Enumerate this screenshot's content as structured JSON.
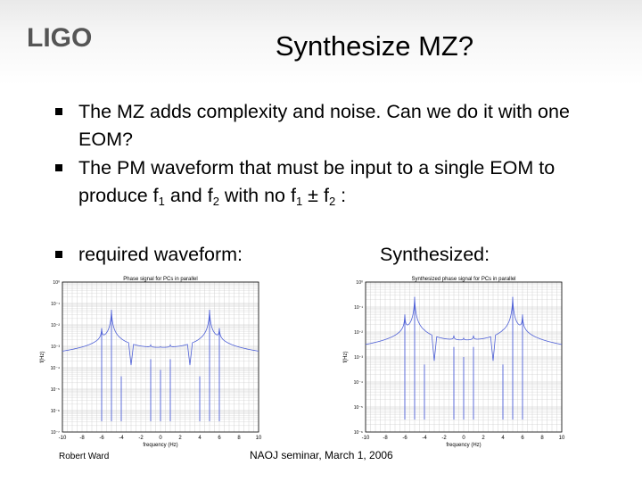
{
  "logo": {
    "text": "LIGO"
  },
  "title": "Synthesize MZ?",
  "bullets": {
    "b1": "The MZ adds complexity and noise. Can we do it with one EOM?",
    "b2_prefix": "The PM waveform that must be input to a single EOM to produce f",
    "b2_s1": "1",
    "b2_and": " and f",
    "b2_s2": "2",
    "b2_with": " with no f",
    "b2_s3": "1",
    "b2_pm": " ± f",
    "b2_s4": "2",
    "b2_end": " :",
    "b3": "required waveform:"
  },
  "synth_label": "Synthesized:",
  "footer": {
    "left": "Robert Ward",
    "center": "NAOJ seminar, March 1, 2006"
  },
  "colors": {
    "trace": "#4d5fd6",
    "grid": "#c8c8c8"
  },
  "chart_data": [
    {
      "type": "line",
      "title": "Phase signal for PCs in parallel",
      "xlabel": "frequency (Hz)",
      "ylabel": "f(Hz)",
      "x_ticks": [
        "-10",
        "-8",
        "-6",
        "-4",
        "-2",
        "0",
        "2",
        "4",
        "6",
        "8",
        "10"
      ],
      "y_ticks": [
        "10⁰",
        "10⁻¹",
        "10⁻²",
        "10⁻³",
        "10⁻⁴",
        "10⁻⁵",
        "10⁻⁶",
        "10⁻⁷"
      ],
      "xlim": [
        -10,
        10
      ],
      "log_y": true,
      "ylim_exp": [
        -7,
        0
      ],
      "floor_exp": -6.5,
      "peaks": [
        {
          "x": -6,
          "top": -2.3
        },
        {
          "x": -5,
          "top": -1.3
        },
        {
          "x": -4,
          "top": -4.4
        },
        {
          "x": -1,
          "top": -3.6
        },
        {
          "x": 0,
          "top": -4.1
        },
        {
          "x": 1,
          "top": -3.6
        },
        {
          "x": 4,
          "top": -4.4
        },
        {
          "x": 5,
          "top": -1.3
        },
        {
          "x": 6,
          "top": -2.3
        }
      ],
      "dips": [
        -3,
        3
      ]
    },
    {
      "type": "line",
      "title": "Synthesized phase signal for PCs in parallel",
      "xlabel": "frequency (Hz)",
      "ylabel": "f(Hz)",
      "x_ticks": [
        "-10",
        "-8",
        "-6",
        "-4",
        "-2",
        "0",
        "2",
        "4",
        "6",
        "8",
        "10"
      ],
      "y_ticks": [
        "10⁰",
        "10⁻¹",
        "10⁻²",
        "10⁻³",
        "10⁻⁴",
        "10⁻⁵",
        "10⁻⁶"
      ],
      "xlim": [
        -10,
        10
      ],
      "log_y": true,
      "ylim_exp": [
        -6,
        0
      ],
      "floor_exp": -5.5,
      "peaks": [
        {
          "x": -6,
          "top": -1.4
        },
        {
          "x": -5,
          "top": -0.6
        },
        {
          "x": -4,
          "top": -3.3
        },
        {
          "x": -1,
          "top": -2.6
        },
        {
          "x": 0,
          "top": -3.0
        },
        {
          "x": 1,
          "top": -2.6
        },
        {
          "x": 4,
          "top": -3.3
        },
        {
          "x": 5,
          "top": -0.6
        },
        {
          "x": 6,
          "top": -1.4
        }
      ],
      "dips": [
        -3,
        3
      ]
    }
  ]
}
